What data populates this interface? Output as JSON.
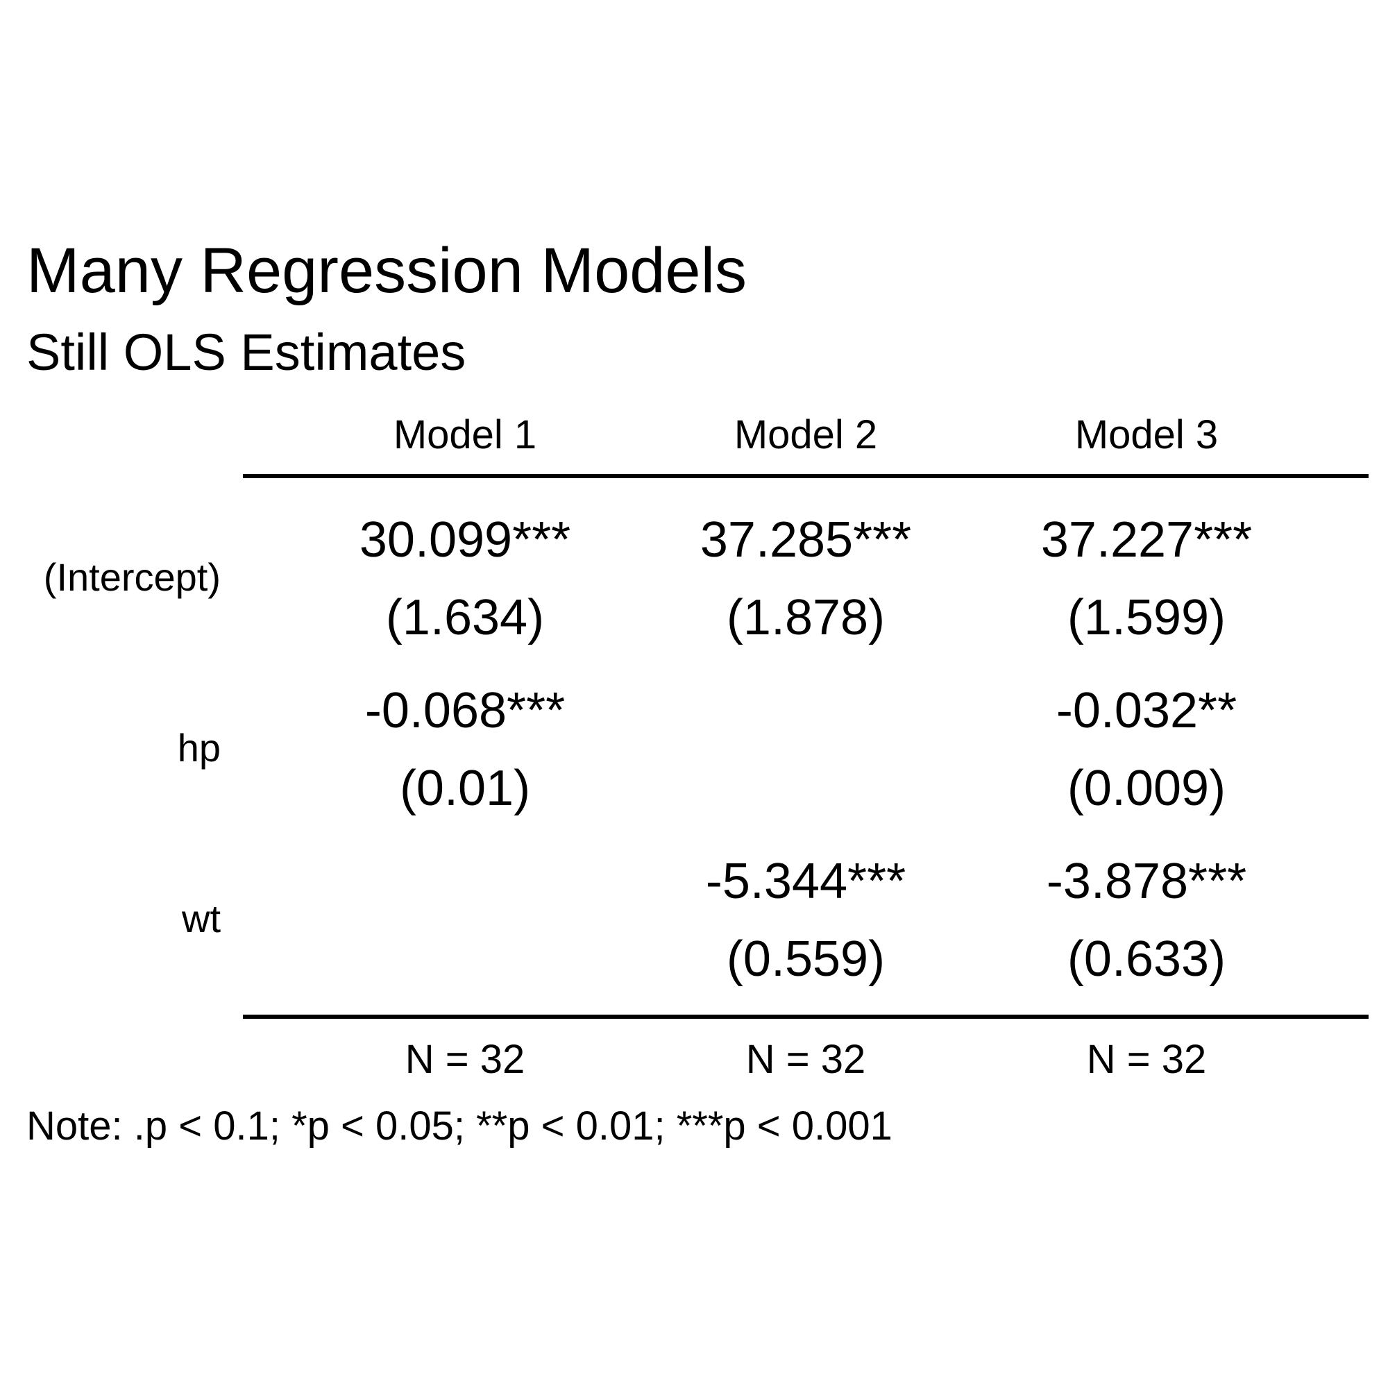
{
  "title": "Many Regression Models",
  "subtitle": "Still OLS Estimates",
  "chart_data": {
    "type": "table",
    "title": "Many Regression Models",
    "subtitle": "Still OLS Estimates",
    "columns": [
      "Model 1",
      "Model 2",
      "Model 3"
    ],
    "rows": [
      {
        "label": "(Intercept)",
        "estimates": [
          "30.099***",
          "37.285***",
          "37.227***"
        ],
        "std_errors": [
          "(1.634)",
          "(1.878)",
          "(1.599)"
        ]
      },
      {
        "label": "hp",
        "estimates": [
          "-0.068***",
          "",
          "-0.032**"
        ],
        "std_errors": [
          "(0.01)",
          "",
          "(0.009)"
        ]
      },
      {
        "label": "wt",
        "estimates": [
          "",
          "-5.344***",
          "-3.878***"
        ],
        "std_errors": [
          "",
          "(0.559)",
          "(0.633)"
        ]
      }
    ],
    "footer": [
      "N = 32",
      "N = 32",
      "N = 32"
    ],
    "note": "Note: .p < 0.1; *p < 0.05; **p < 0.01; ***p < 0.001"
  }
}
